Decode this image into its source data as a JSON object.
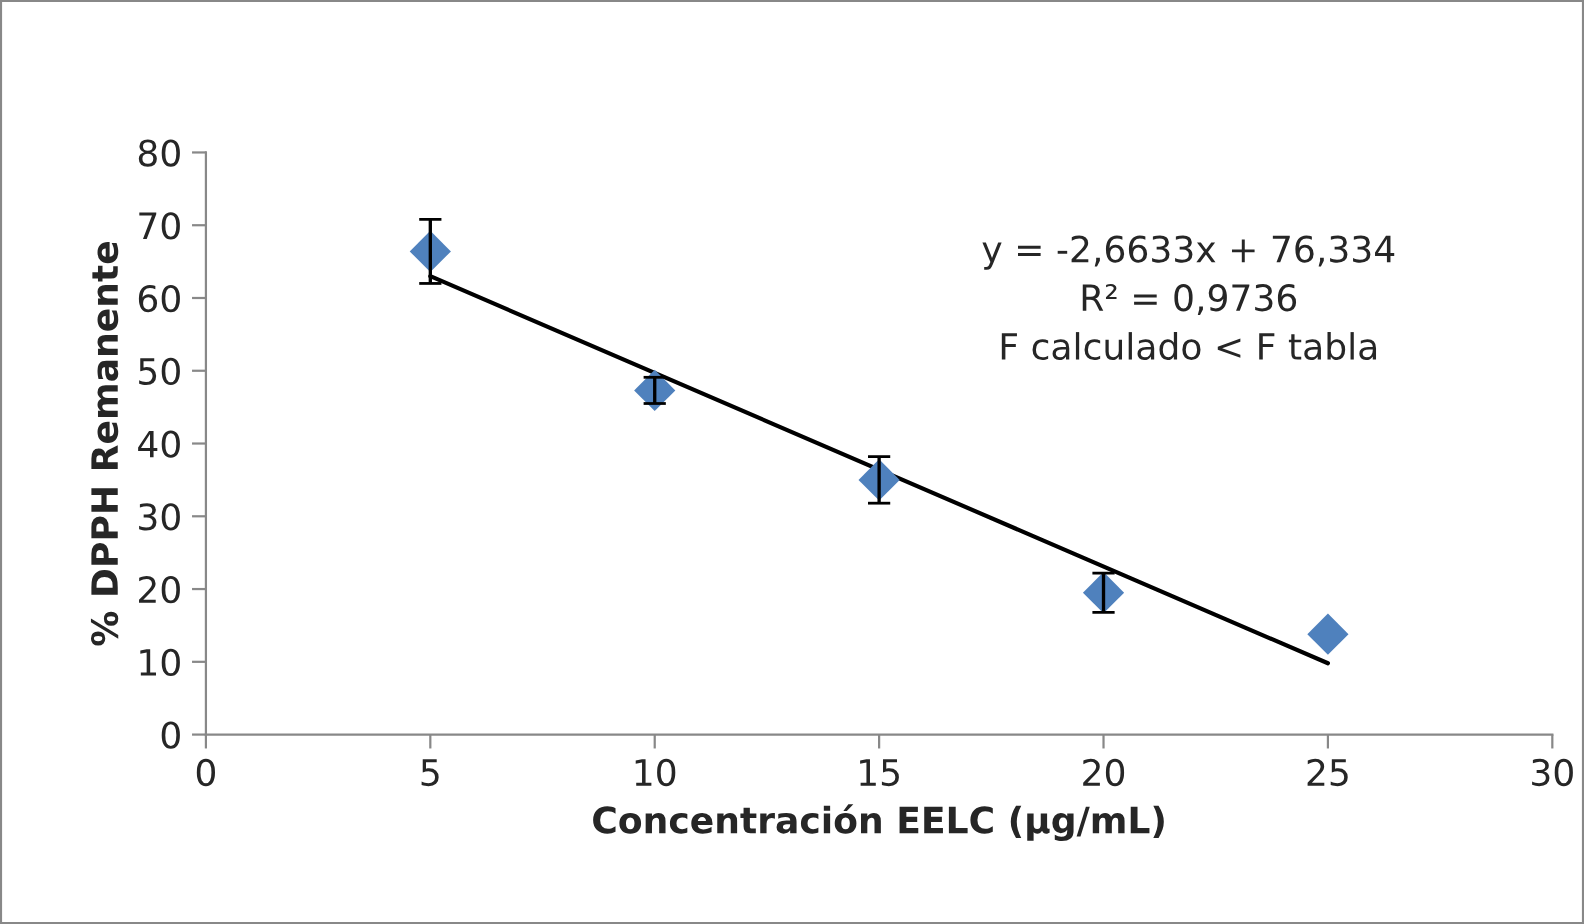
{
  "chart_data": {
    "type": "scatter",
    "xlabel": "Concentración EELC (µg/mL)",
    "ylabel": "% DPPH Remanente",
    "xlim": [
      0,
      30
    ],
    "xticks": [
      0,
      5,
      10,
      15,
      20,
      25,
      30
    ],
    "ylim": [
      0,
      80
    ],
    "yticks": [
      0,
      10,
      20,
      30,
      40,
      50,
      60,
      70,
      80
    ],
    "grid": false,
    "legend": false,
    "marker": "diamond",
    "series": [
      {
        "color": "#4f81bd",
        "x": [
          5,
          10,
          15,
          20,
          25
        ],
        "values": [
          66.4,
          47.3,
          35.0,
          19.5,
          13.8
        ],
        "errors": [
          4.4,
          1.8,
          3.2,
          2.7,
          null
        ]
      },
      {
        "type": "line",
        "color": "#000000",
        "x": [
          5,
          25
        ],
        "values": [
          63.0,
          9.8
        ],
        "line_style": "solid",
        "marker": "none"
      }
    ],
    "annotations": [
      "y = -2,6633x + 76,334\nR² = 0,9736\nF calculado < F tabla"
    ]
  }
}
